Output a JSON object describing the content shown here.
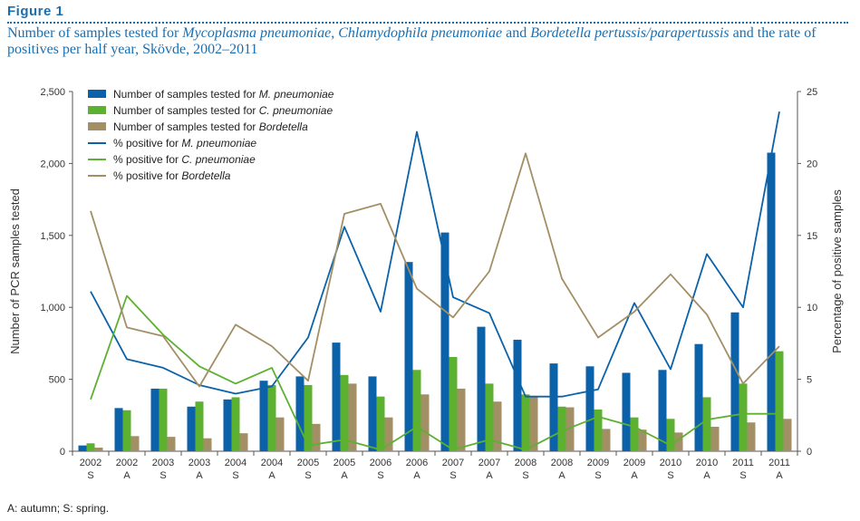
{
  "figure": {
    "label": "Figure 1",
    "title_parts": [
      {
        "text": "Number of samples tested for ",
        "italic": false
      },
      {
        "text": "Mycoplasma pneumoniae",
        "italic": true
      },
      {
        "text": ", ",
        "italic": false
      },
      {
        "text": "Chlamydophila pneumoniae",
        "italic": true
      },
      {
        "text": " and ",
        "italic": false
      },
      {
        "text": "Bordetella pertussis/parapertussis",
        "italic": true
      },
      {
        "text": " and the rate of positives per half year, Skövde, 2002–2011",
        "italic": false
      }
    ],
    "footnote": "A: autumn; S: spring."
  },
  "colors": {
    "mp": "#0b62a8",
    "cp": "#5cb130",
    "bord": "#a38f66",
    "axis": "#555555",
    "text": "#333333"
  },
  "chart_data": {
    "type": "bar",
    "ylabel": "Number of PCR samples tested",
    "y2label": "Percentage of positive samples",
    "ylim": [
      0,
      2500
    ],
    "y2lim": [
      0,
      25
    ],
    "yticks": [
      "0",
      "500",
      "1,000",
      "1,500",
      "2,000",
      "2,500"
    ],
    "y2ticks": [
      "0",
      "5",
      "10",
      "15",
      "20",
      "25"
    ],
    "categories": [
      {
        "year": "2002",
        "season": "S"
      },
      {
        "year": "2002",
        "season": "A"
      },
      {
        "year": "2003",
        "season": "S"
      },
      {
        "year": "2003",
        "season": "A"
      },
      {
        "year": "2004",
        "season": "S"
      },
      {
        "year": "2004",
        "season": "A"
      },
      {
        "year": "2005",
        "season": "S"
      },
      {
        "year": "2005",
        "season": "A"
      },
      {
        "year": "2006",
        "season": "S"
      },
      {
        "year": "2006",
        "season": "A"
      },
      {
        "year": "2007",
        "season": "S"
      },
      {
        "year": "2007",
        "season": "A"
      },
      {
        "year": "2008",
        "season": "S"
      },
      {
        "year": "2008",
        "season": "A"
      },
      {
        "year": "2009",
        "season": "S"
      },
      {
        "year": "2009",
        "season": "A"
      },
      {
        "year": "2010",
        "season": "S"
      },
      {
        "year": "2010",
        "season": "A"
      },
      {
        "year": "2011",
        "season": "S"
      },
      {
        "year": "2011",
        "season": "A"
      }
    ],
    "series": [
      {
        "name_prefix": "Number of samples tested for ",
        "name_italic": "M. pneumoniae",
        "kind": "bar",
        "color_key": "mp",
        "values": [
          40,
          300,
          435,
          310,
          360,
          490,
          520,
          755,
          520,
          1315,
          1520,
          865,
          775,
          610,
          590,
          545,
          565,
          745,
          965,
          2075
        ]
      },
      {
        "name_prefix": "Number of samples tested for ",
        "name_italic": "C. pneumoniae",
        "kind": "bar",
        "color_key": "cp",
        "values": [
          55,
          285,
          435,
          345,
          375,
          460,
          460,
          530,
          380,
          565,
          655,
          470,
          395,
          310,
          290,
          235,
          225,
          375,
          470,
          695
        ]
      },
      {
        "name_prefix": "Number of samples tested for ",
        "name_italic": "Bordetella",
        "kind": "bar",
        "color_key": "bord",
        "values": [
          25,
          105,
          100,
          90,
          125,
          235,
          190,
          470,
          235,
          395,
          435,
          345,
          385,
          305,
          155,
          150,
          130,
          170,
          200,
          225
        ]
      },
      {
        "name_prefix": "% positive for ",
        "name_italic": "M. pneumoniae",
        "kind": "line",
        "color_key": "mp",
        "values": [
          11.1,
          6.4,
          5.8,
          4.6,
          4.0,
          4.5,
          7.9,
          15.6,
          9.7,
          22.2,
          10.7,
          9.6,
          3.8,
          3.8,
          4.3,
          10.3,
          5.7,
          13.7,
          10.0,
          23.6
        ]
      },
      {
        "name_prefix": "% positive for ",
        "name_italic": "C. pneumoniae",
        "kind": "line",
        "color_key": "cp",
        "values": [
          3.6,
          10.8,
          8.1,
          5.9,
          4.7,
          5.8,
          0.4,
          0.8,
          0.1,
          1.7,
          0.1,
          0.8,
          0.1,
          1.4,
          2.4,
          1.7,
          0.4,
          2.2,
          2.6,
          2.6
        ]
      },
      {
        "name_prefix": "% positive for ",
        "name_italic": "Bordetella",
        "kind": "line",
        "color_key": "bord",
        "values": [
          16.7,
          8.6,
          8.0,
          4.5,
          8.8,
          7.3,
          4.9,
          16.5,
          17.2,
          11.3,
          9.3,
          12.5,
          20.7,
          12.0,
          7.9,
          9.7,
          12.3,
          9.5,
          4.7,
          7.3
        ]
      }
    ]
  }
}
